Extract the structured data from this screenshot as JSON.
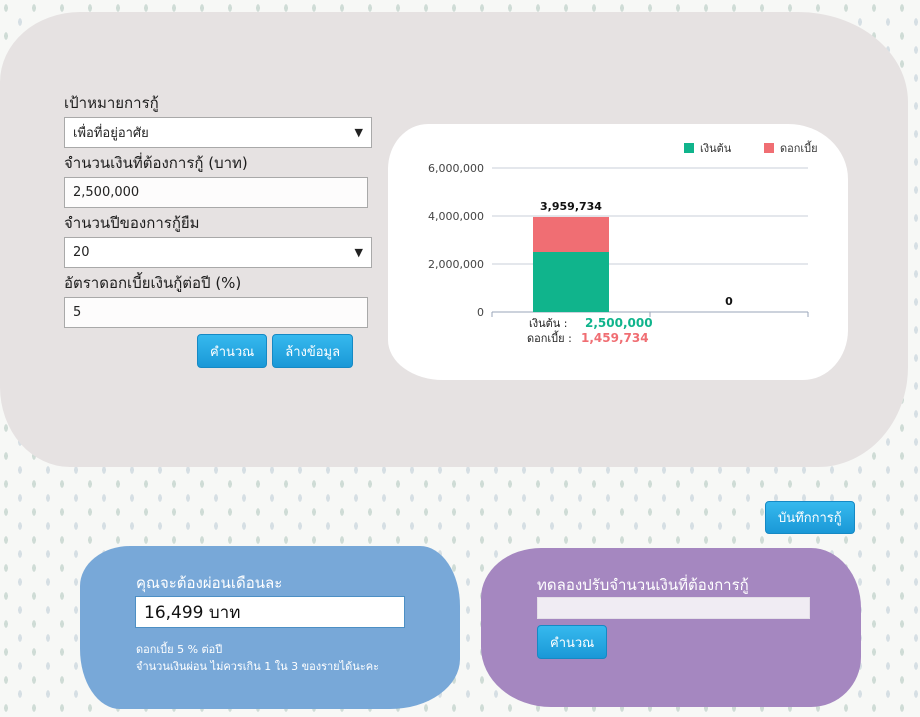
{
  "form": {
    "purpose_label": "เป้าหมายการกู้",
    "purpose_value": "เพื่อที่อยู่อาศัย",
    "amount_label": "จำนวนเงินที่ต้องการกู้ (บาท)",
    "amount_value": "2,500,000",
    "years_label": "จำนวนปีของการกู้ยืม",
    "years_value": "20",
    "rate_label": "อัตราดอกเบี้ยเงินกู้ต่อปี (%)",
    "rate_value": "5",
    "calc_label": "คำนวณ",
    "clear_label": "ล้างข้อมูล"
  },
  "save_label": "บันทึกการกู้",
  "payment": {
    "title": "คุณจะต้องผ่อนเดือนละ",
    "value": "16,499 บาท",
    "note_rate": "ดอกเบี้ย 5 % ต่อปี",
    "note_limit": "จำนวนเงินผ่อน ไม่ควรเกิน 1 ใน 3 ของรายได้นะคะ"
  },
  "adjust": {
    "title": "ทดลองปรับจำนวนเงินที่ต้องการกู้",
    "input_value": "",
    "calc_label": "คำนวณ"
  },
  "chart_data": {
    "type": "bar",
    "stacked": true,
    "categories": [
      "",
      ""
    ],
    "series": [
      {
        "name": "เงินต้น",
        "color": "#10b48c",
        "values": [
          2500000,
          0
        ]
      },
      {
        "name": "ดอกเบี้ย",
        "color": "#f06e73",
        "values": [
          1459734,
          0
        ]
      }
    ],
    "totals": [
      "3,959,734",
      "0"
    ],
    "breakdown": {
      "principal_label": "เงินต้น :",
      "principal_value": "2,500,000",
      "interest_label": "ดอกเบี้ย :",
      "interest_value": "1,459,734"
    },
    "yticks": [
      0,
      2000000,
      4000000,
      6000000
    ],
    "ytick_labels": [
      "0",
      "2,000,000",
      "4,000,000",
      "6,000,000"
    ],
    "ylim": [
      0,
      6000000
    ],
    "legend_placement": "top-right",
    "grid": true
  }
}
